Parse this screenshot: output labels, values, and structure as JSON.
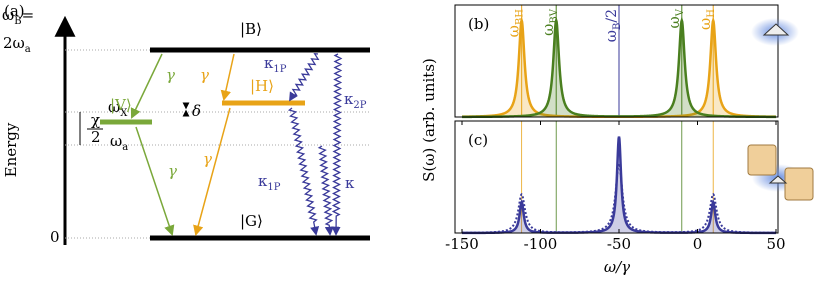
{
  "panel_a": {
    "label": "(a)",
    "y_axis_label": "Energy",
    "left_labels": [
      {
        "base": "ω",
        "sub": "B",
        "tail": "="
      },
      {
        "base": "2ω",
        "sub": "a"
      },
      {
        "base": "ω",
        "sub": "X"
      },
      {
        "base": "ω",
        "sub": "a"
      },
      "0"
    ],
    "chi_half": {
      "num": "χ",
      "den": "2"
    },
    "delta": "δ",
    "states": {
      "B": "|B⟩",
      "H": "|H⟩",
      "V": "|V⟩",
      "G": "|G⟩"
    },
    "gamma": "γ",
    "rates": [
      {
        "base": "κ",
        "sub": "1P"
      },
      {
        "base": "κ",
        "sub": "2P"
      },
      {
        "base": "κ",
        "sub": "1P"
      },
      "κ"
    ]
  },
  "spectra": {
    "xlim": [
      -150,
      50
    ],
    "xticks": [
      -150,
      -100,
      -50,
      0,
      50
    ],
    "x_label": "ω/γ",
    "y_label": "S(ω) (arb. units)",
    "ylim": [
      0,
      1.12
    ],
    "panels": [
      {
        "label": "(b)",
        "series": [
          {
            "color": "#e8a317",
            "centers": [
              -112,
              10
            ],
            "heights": [
              1,
              1
            ],
            "width": 2.2,
            "fill": true,
            "dash": false
          },
          {
            "color": "#4a7f1f",
            "centers": [
              -90,
              -10
            ],
            "heights": [
              1,
              1
            ],
            "width": 2.2,
            "fill": true,
            "dash": false
          }
        ],
        "markers": [
          {
            "x": -112,
            "color": "#e8a317",
            "label": {
              "base": "ω",
              "sub": "BH"
            }
          },
          {
            "x": -90,
            "color": "#4a7f1f",
            "label": {
              "base": "ω",
              "sub": "BV"
            }
          },
          {
            "x": -50,
            "color": "#3a3a9a",
            "label": {
              "base": "ω",
              "sub": "B",
              "tail": "/2"
            }
          },
          {
            "x": -10,
            "color": "#4a7f1f",
            "label": {
              "base": "ω",
              "sub": "V"
            }
          },
          {
            "x": 10,
            "color": "#e8a317",
            "label": {
              "base": "ω",
              "sub": "H"
            }
          }
        ]
      },
      {
        "label": "(c)",
        "series": [
          {
            "color": "#3a3a9a",
            "centers": [
              -112,
              -50,
              10
            ],
            "heights": [
              0.32,
              1,
              0.32
            ],
            "width": 1.6,
            "fill": true,
            "dash": false
          },
          {
            "color": "#3a3a9a",
            "centers": [
              -112,
              -50,
              10
            ],
            "heights": [
              0.4,
              0.72,
              0.4
            ],
            "width": 2.6,
            "fill": false,
            "dash": true
          }
        ],
        "markers": [
          {
            "x": -112,
            "color": "#e8a317"
          },
          {
            "x": -90,
            "color": "#4a7f1f"
          },
          {
            "x": -10,
            "color": "#4a7f1f"
          },
          {
            "x": 10,
            "color": "#e8a317"
          }
        ]
      }
    ]
  }
}
